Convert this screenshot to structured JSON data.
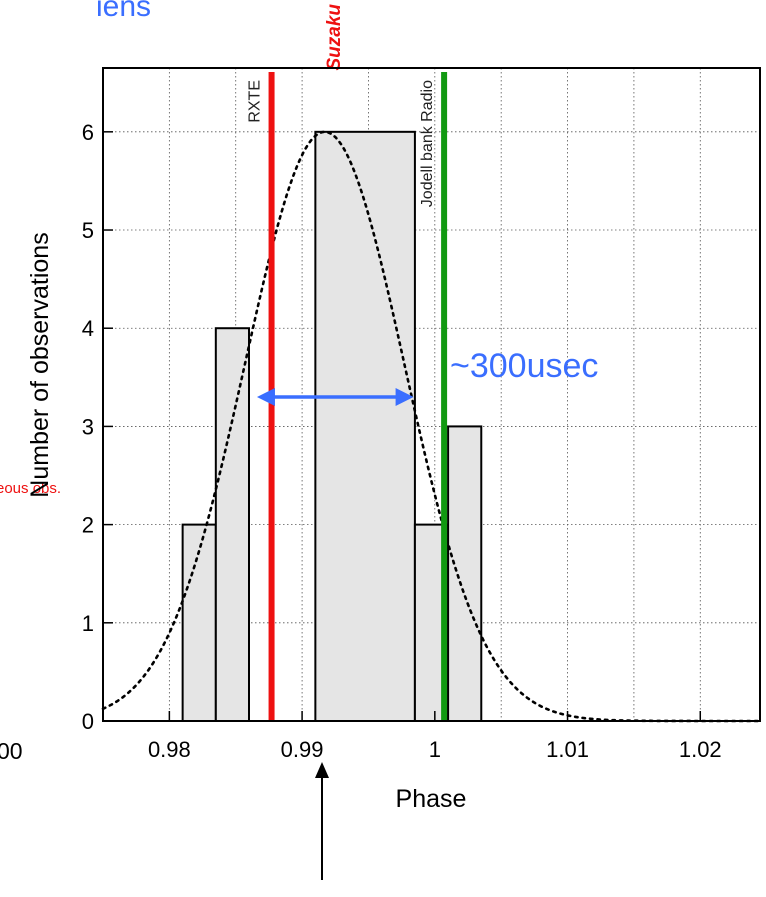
{
  "header_fragment": "iens",
  "left_fragments": {
    "label": "eous obs.",
    "tick": "00"
  },
  "chart_data": {
    "type": "bar",
    "title": "",
    "xlabel": "Phase",
    "ylabel": "Number of observations",
    "xlim": [
      0.975,
      1.0245
    ],
    "ylim": [
      0,
      6.65
    ],
    "xticks": [
      0.98,
      0.99,
      1,
      1.01,
      1.02
    ],
    "xtick_labels": [
      "0.98",
      "0.99",
      "1",
      "1.01",
      "1.02"
    ],
    "yticks": [
      0,
      1,
      2,
      3,
      4,
      5,
      6
    ],
    "ytick_labels": [
      "0",
      "1",
      "2",
      "3",
      "4",
      "5",
      "6"
    ],
    "grid": true,
    "bins": [
      {
        "x0": 0.981,
        "x1": 0.9835,
        "count": 2
      },
      {
        "x0": 0.9835,
        "x1": 0.986,
        "count": 4
      },
      {
        "x0": 0.986,
        "x1": 0.991,
        "count": 0
      },
      {
        "x0": 0.991,
        "x1": 0.9985,
        "count": 6
      },
      {
        "x0": 0.9985,
        "x1": 1.001,
        "count": 2
      },
      {
        "x0": 1.001,
        "x1": 1.0035,
        "count": 3
      }
    ],
    "bar_fill": "#e5e5e5",
    "gaussian_fit": {
      "mean": 0.9917,
      "sigma": 0.006,
      "peak": 6
    },
    "markers": [
      {
        "label": "RXTE",
        "x": 0.9877,
        "color": "#ee1111"
      },
      {
        "label": "Suzaku",
        "x": 0.9912,
        "color": "#ee1111"
      },
      {
        "label": "Jodell bank Radio",
        "x": 1.0007,
        "color": "#119911"
      }
    ],
    "annotation": {
      "text": "~300usec",
      "arrow_from": 0.9866,
      "arrow_to": 0.9984,
      "y": 3.3,
      "color": "#3a6eff"
    }
  }
}
